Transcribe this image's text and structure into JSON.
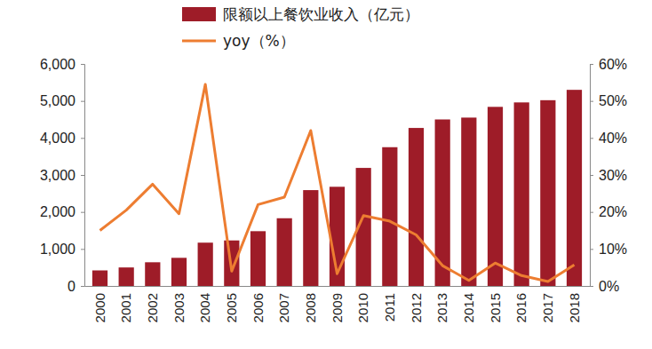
{
  "chart_data": {
    "type": "bar",
    "categories": [
      "2000",
      "2001",
      "2002",
      "2003",
      "2004",
      "2005",
      "2006",
      "2007",
      "2008",
      "2009",
      "2010",
      "2011",
      "2012",
      "2013",
      "2014",
      "2015",
      "2016",
      "2017",
      "2018"
    ],
    "series": [
      {
        "name": "限额以上餐饮业收入（亿元）",
        "type": "bar",
        "color": "#9e1c28",
        "values": [
          420,
          500,
          640,
          760,
          1170,
          1230,
          1480,
          1830,
          2590,
          2680,
          3190,
          3750,
          4270,
          4500,
          4550,
          4840,
          4960,
          5020,
          5300
        ]
      },
      {
        "name": "yoy（%）",
        "type": "line",
        "color": "#ed7d31",
        "axis": "y2",
        "values": [
          15,
          20.5,
          27.5,
          19.5,
          54.5,
          4,
          22,
          24,
          42,
          3.3,
          19,
          17.5,
          13.8,
          5.5,
          1.5,
          6.2,
          2.8,
          1.2,
          5.7
        ]
      }
    ],
    "ylim": [
      0,
      6000
    ],
    "yticks": [
      0,
      {
        "value": 1000,
        "label": "1,000"
      },
      {
        "value": 2000,
        "label": "2,000"
      },
      {
        "value": 3000,
        "label": "3,000"
      },
      {
        "value": 4000,
        "label": "4,000"
      },
      {
        "value": 5000,
        "label": "5,000"
      },
      {
        "value": 6000,
        "label": "6,000"
      }
    ],
    "y2lim": [
      0,
      60
    ],
    "y2ticks": [
      {
        "value": 0,
        "label": "0%"
      },
      {
        "value": 10,
        "label": "10%"
      },
      {
        "value": 20,
        "label": "20%"
      },
      {
        "value": 30,
        "label": "30%"
      },
      {
        "value": 40,
        "label": "40%"
      },
      {
        "value": 50,
        "label": "50%"
      },
      {
        "value": 60,
        "label": "60%"
      }
    ],
    "legend": "top"
  }
}
